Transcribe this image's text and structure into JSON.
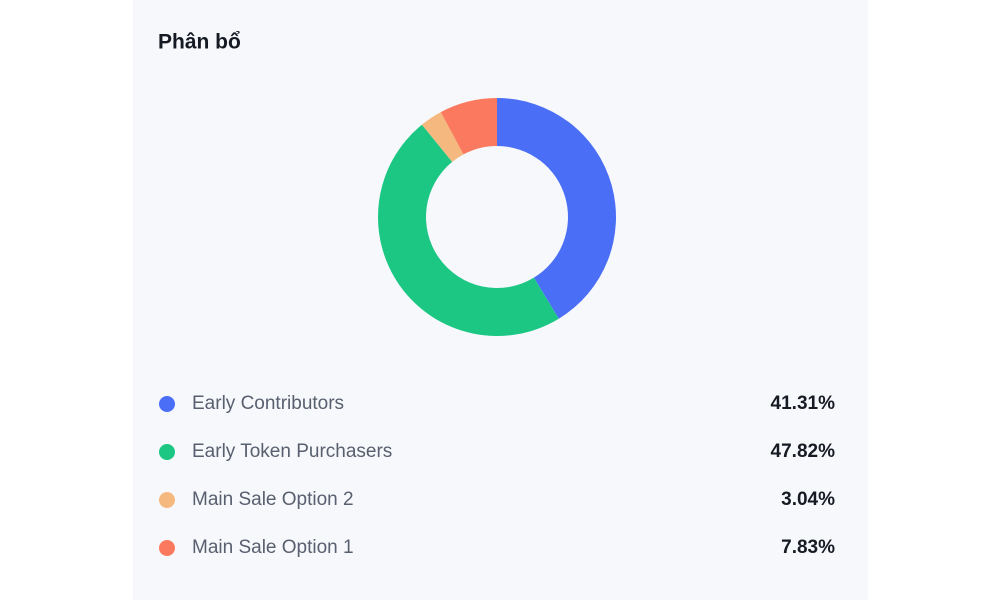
{
  "chart_data": {
    "type": "pie",
    "donut": true,
    "title": "Phân bổ",
    "categories": [
      "Early Contributors",
      "Early Token Purchasers",
      "Main Sale Option 2",
      "Main Sale Option 1"
    ],
    "values": [
      41.31,
      47.82,
      3.04,
      7.83
    ],
    "value_labels": [
      "41.31%",
      "47.82%",
      "3.04%",
      "7.83%"
    ],
    "colors": [
      "#4a6ef5",
      "#1cc784",
      "#f5b97f",
      "#fb7a5f"
    ]
  }
}
